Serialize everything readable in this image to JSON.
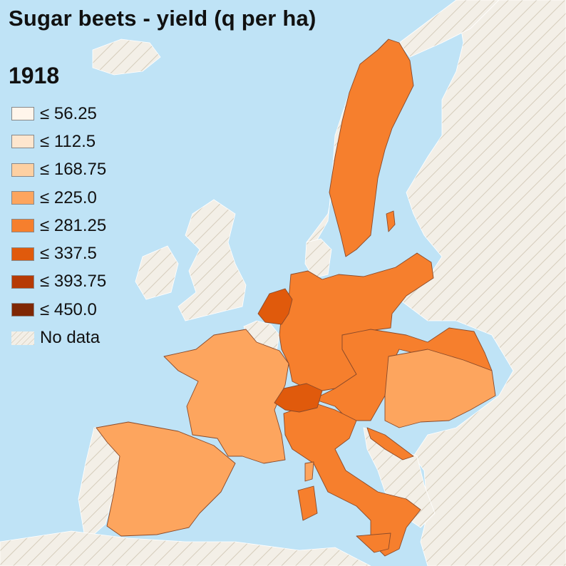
{
  "map": {
    "title": "Sugar beets - yield (q per ha)",
    "year": "1918",
    "colors": {
      "sea": "#bfe3f6",
      "no_data": "#f3efe7"
    },
    "legend": [
      {
        "label": "≤ 56.25",
        "color": "#fff5eb"
      },
      {
        "label": "≤ 112.5",
        "color": "#fee6ce"
      },
      {
        "label": "≤ 168.75",
        "color": "#fdd0a2"
      },
      {
        "label": "≤ 225.0",
        "color": "#fda55e"
      },
      {
        "label": "≤ 281.25",
        "color": "#f67f2d"
      },
      {
        "label": "≤ 337.5",
        "color": "#e05a0c"
      },
      {
        "label": "≤ 393.75",
        "color": "#b63a05"
      },
      {
        "label": "≤ 450.0",
        "color": "#7f2704"
      },
      {
        "label": "No data",
        "color": "hatched"
      }
    ],
    "regions": {
      "sweden": {
        "class": "≤ 281.25"
      },
      "germany": {
        "class": "≤ 281.25"
      },
      "austria_hungary": {
        "class": "≤ 281.25"
      },
      "italy": {
        "class": "≤ 281.25"
      },
      "france": {
        "class": "≤ 225.0"
      },
      "spain": {
        "class": "≤ 225.0"
      },
      "hungary": {
        "class": "≤ 225.0"
      },
      "netherlands": {
        "class": "≤ 337.5"
      },
      "switzerland": {
        "class": "≤ 337.5"
      },
      "belgium": {
        "class": "No data"
      },
      "russia": {
        "class": "No data"
      },
      "norway": {
        "class": "No data"
      },
      "balkans": {
        "class": "No data"
      },
      "portugal": {
        "class": "No data"
      },
      "north_africa": {
        "class": "No data"
      }
    }
  }
}
